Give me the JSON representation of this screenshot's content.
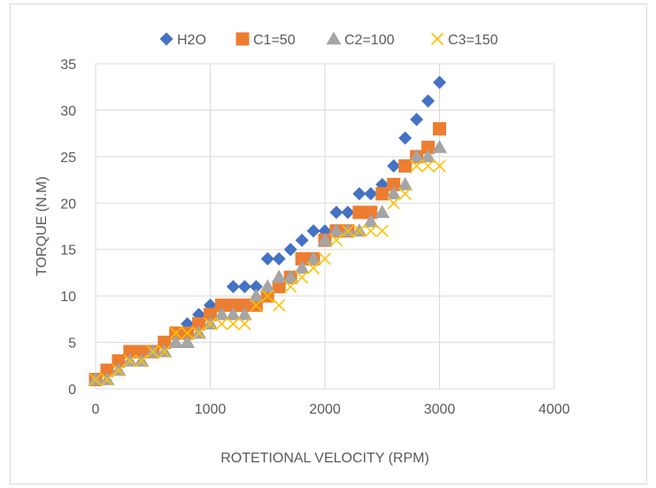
{
  "chart_data": {
    "type": "scatter",
    "title": "",
    "xlabel": "ROTETIONAL VELOCITY (RPM)",
    "ylabel": "TORQUE (N.M)",
    "xlim": [
      0,
      4000
    ],
    "ylim": [
      0,
      35
    ],
    "x_ticks": [
      0,
      1000,
      2000,
      3000,
      4000
    ],
    "y_ticks": [
      0,
      5,
      10,
      15,
      20,
      25,
      30,
      35
    ],
    "grid": true,
    "legend_position": "top",
    "series": [
      {
        "name": "H2O",
        "marker": "diamond",
        "color": "#4472C4",
        "points": [
          [
            0,
            1
          ],
          [
            100,
            2
          ],
          [
            200,
            3
          ],
          [
            300,
            4
          ],
          [
            400,
            4
          ],
          [
            500,
            4
          ],
          [
            600,
            5
          ],
          [
            700,
            6
          ],
          [
            800,
            7
          ],
          [
            900,
            8
          ],
          [
            1000,
            9
          ],
          [
            1100,
            9
          ],
          [
            1200,
            11
          ],
          [
            1300,
            11
          ],
          [
            1400,
            11
          ],
          [
            1500,
            14
          ],
          [
            1600,
            14
          ],
          [
            1700,
            15
          ],
          [
            1800,
            16
          ],
          [
            1900,
            17
          ],
          [
            2000,
            17
          ],
          [
            2100,
            19
          ],
          [
            2200,
            19
          ],
          [
            2300,
            21
          ],
          [
            2400,
            21
          ],
          [
            2500,
            22
          ],
          [
            2600,
            24
          ],
          [
            2700,
            27
          ],
          [
            2800,
            29
          ],
          [
            2900,
            31
          ],
          [
            3000,
            33
          ]
        ]
      },
      {
        "name": "C1=50",
        "marker": "square",
        "color": "#ED7D31",
        "points": [
          [
            0,
            1
          ],
          [
            100,
            2
          ],
          [
            200,
            3
          ],
          [
            300,
            4
          ],
          [
            400,
            4
          ],
          [
            500,
            4
          ],
          [
            600,
            5
          ],
          [
            700,
            6
          ],
          [
            800,
            6
          ],
          [
            900,
            7
          ],
          [
            1000,
            8
          ],
          [
            1100,
            9
          ],
          [
            1200,
            9
          ],
          [
            1300,
            9
          ],
          [
            1400,
            9
          ],
          [
            1500,
            10
          ],
          [
            1600,
            11
          ],
          [
            1700,
            12
          ],
          [
            1800,
            14
          ],
          [
            1900,
            14
          ],
          [
            2000,
            16
          ],
          [
            2100,
            17
          ],
          [
            2200,
            17
          ],
          [
            2300,
            19
          ],
          [
            2400,
            19
          ],
          [
            2500,
            21
          ],
          [
            2600,
            22
          ],
          [
            2700,
            24
          ],
          [
            2800,
            25
          ],
          [
            2900,
            26
          ],
          [
            3000,
            28
          ]
        ]
      },
      {
        "name": "C2=100",
        "marker": "triangle",
        "color": "#A5A5A5",
        "points": [
          [
            0,
            1
          ],
          [
            100,
            1
          ],
          [
            200,
            2
          ],
          [
            300,
            3
          ],
          [
            400,
            3
          ],
          [
            500,
            4
          ],
          [
            600,
            4
          ],
          [
            700,
            5
          ],
          [
            800,
            5
          ],
          [
            900,
            6
          ],
          [
            1000,
            7
          ],
          [
            1100,
            8
          ],
          [
            1200,
            8
          ],
          [
            1300,
            8
          ],
          [
            1400,
            10
          ],
          [
            1500,
            11
          ],
          [
            1600,
            12
          ],
          [
            1700,
            12
          ],
          [
            1800,
            13
          ],
          [
            1900,
            14
          ],
          [
            2000,
            16
          ],
          [
            2100,
            17
          ],
          [
            2200,
            17
          ],
          [
            2300,
            17
          ],
          [
            2400,
            18
          ],
          [
            2500,
            19
          ],
          [
            2600,
            21
          ],
          [
            2700,
            22
          ],
          [
            2800,
            25
          ],
          [
            2900,
            25
          ],
          [
            3000,
            26
          ]
        ]
      },
      {
        "name": "C3=150",
        "marker": "x",
        "color": "#FFC000",
        "points": [
          [
            0,
            1
          ],
          [
            100,
            1
          ],
          [
            200,
            2
          ],
          [
            300,
            3
          ],
          [
            400,
            3
          ],
          [
            500,
            4
          ],
          [
            600,
            4
          ],
          [
            700,
            6
          ],
          [
            800,
            6
          ],
          [
            900,
            6
          ],
          [
            1000,
            7
          ],
          [
            1100,
            7
          ],
          [
            1200,
            7
          ],
          [
            1300,
            7
          ],
          [
            1400,
            9
          ],
          [
            1500,
            10
          ],
          [
            1600,
            9
          ],
          [
            1700,
            11
          ],
          [
            1800,
            12
          ],
          [
            1900,
            13
          ],
          [
            2000,
            14
          ],
          [
            2100,
            16
          ],
          [
            2200,
            17
          ],
          [
            2300,
            17
          ],
          [
            2400,
            17
          ],
          [
            2500,
            17
          ],
          [
            2600,
            20
          ],
          [
            2700,
            21
          ],
          [
            2800,
            24
          ],
          [
            2900,
            24
          ],
          [
            3000,
            24
          ]
        ]
      }
    ]
  }
}
